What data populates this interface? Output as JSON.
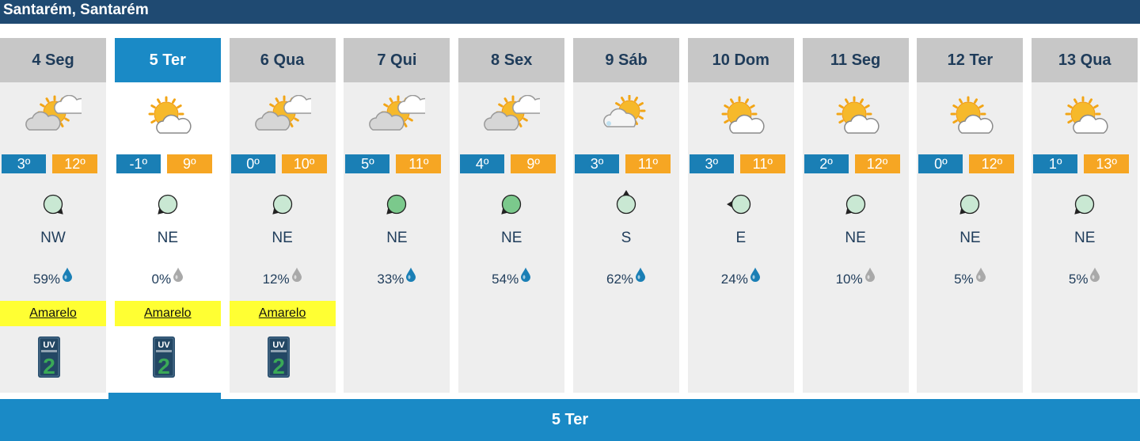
{
  "location": {
    "title": "Santarém, Santarém"
  },
  "days": [
    {
      "label": "4 Seg",
      "icon": "sun-cloud-grey-icon",
      "tmin": "3º",
      "tmax": "12º",
      "wind": "NW",
      "wind_rot": -45,
      "wind_color": "#c9e8d3",
      "precip": "59%",
      "drop": "blue",
      "warning": "Amarelo",
      "uv": "2",
      "selected": false
    },
    {
      "label": "5 Ter",
      "icon": "sun-cloud-icon",
      "tmin": "-1º",
      "tmax": "9º",
      "wind": "NE",
      "wind_rot": 45,
      "wind_color": "#c9e8d3",
      "precip": "0%",
      "drop": "grey",
      "warning": "Amarelo",
      "uv": "2",
      "selected": true
    },
    {
      "label": "6 Qua",
      "icon": "sun-cloud-grey-icon",
      "tmin": "0º",
      "tmax": "10º",
      "wind": "NE",
      "wind_rot": 45,
      "wind_color": "#c9e8d3",
      "precip": "12%",
      "drop": "grey",
      "warning": "Amarelo",
      "uv": "2",
      "selected": false
    },
    {
      "label": "7 Qui",
      "icon": "sun-cloud-grey-icon",
      "tmin": "5º",
      "tmax": "11º",
      "wind": "NE",
      "wind_rot": 45,
      "wind_color": "#7bc98c",
      "precip": "33%",
      "drop": "blue",
      "warning": "",
      "uv": "",
      "selected": false
    },
    {
      "label": "8 Sex",
      "icon": "sun-cloud-grey-icon",
      "tmin": "4º",
      "tmax": "9º",
      "wind": "NE",
      "wind_rot": 45,
      "wind_color": "#7bc98c",
      "precip": "54%",
      "drop": "blue",
      "warning": "",
      "uv": "",
      "selected": false
    },
    {
      "label": "9 Sáb",
      "icon": "cloud-sun-rain-icon",
      "tmin": "3º",
      "tmax": "11º",
      "wind": "S",
      "wind_rot": 180,
      "wind_color": "#c9e8d3",
      "precip": "62%",
      "drop": "blue",
      "warning": "",
      "uv": "",
      "selected": false
    },
    {
      "label": "10 Dom",
      "icon": "sun-cloud-icon",
      "tmin": "3º",
      "tmax": "11º",
      "wind": "E",
      "wind_rot": 90,
      "wind_color": "#c9e8d3",
      "precip": "24%",
      "drop": "blue",
      "warning": "",
      "uv": "",
      "selected": false
    },
    {
      "label": "11 Seg",
      "icon": "sun-cloud-icon",
      "tmin": "2º",
      "tmax": "12º",
      "wind": "NE",
      "wind_rot": 45,
      "wind_color": "#c9e8d3",
      "precip": "10%",
      "drop": "grey",
      "warning": "",
      "uv": "",
      "selected": false
    },
    {
      "label": "12 Ter",
      "icon": "sun-cloud-icon",
      "tmin": "0º",
      "tmax": "12º",
      "wind": "NE",
      "wind_rot": 45,
      "wind_color": "#c9e8d3",
      "precip": "5%",
      "drop": "grey",
      "warning": "",
      "uv": "",
      "selected": false
    },
    {
      "label": "13 Qua",
      "icon": "sun-cloud-icon",
      "tmin": "1º",
      "tmax": "13º",
      "wind": "NE",
      "wind_rot": 45,
      "wind_color": "#c9e8d3",
      "precip": "5%",
      "drop": "grey",
      "warning": "",
      "uv": "",
      "selected": false
    }
  ],
  "selected_day_label": "5 Ter",
  "colors": {
    "header": "#1f4a72",
    "selected": "#1a8ac6",
    "tmin": "#1a7fb5",
    "tmax": "#f6a623",
    "warning": "#ffff33"
  }
}
